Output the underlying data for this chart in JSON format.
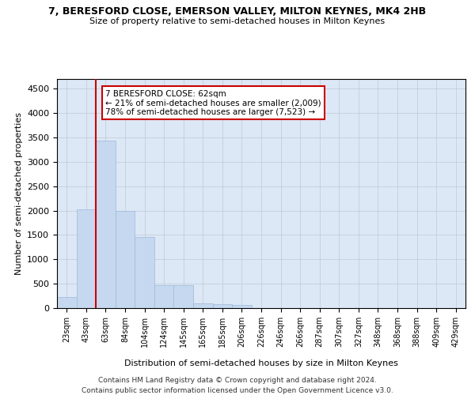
{
  "title": "7, BERESFORD CLOSE, EMERSON VALLEY, MILTON KEYNES, MK4 2HB",
  "subtitle": "Size of property relative to semi-detached houses in Milton Keynes",
  "xlabel": "Distribution of semi-detached houses by size in Milton Keynes",
  "ylabel": "Number of semi-detached properties",
  "footer_line1": "Contains HM Land Registry data © Crown copyright and database right 2024.",
  "footer_line2": "Contains public sector information licensed under the Open Government Licence v3.0.",
  "bar_labels": [
    "23sqm",
    "43sqm",
    "63sqm",
    "84sqm",
    "104sqm",
    "124sqm",
    "145sqm",
    "165sqm",
    "185sqm",
    "206sqm",
    "226sqm",
    "246sqm",
    "266sqm",
    "287sqm",
    "307sqm",
    "327sqm",
    "348sqm",
    "368sqm",
    "388sqm",
    "409sqm",
    "429sqm"
  ],
  "bar_values": [
    230,
    2020,
    3430,
    2000,
    1460,
    470,
    470,
    100,
    80,
    60,
    0,
    0,
    0,
    0,
    0,
    0,
    0,
    0,
    0,
    0,
    0
  ],
  "bar_color": "#c5d8f0",
  "bar_edgecolor": "#a0b8d8",
  "property_line_x": 1.5,
  "annotation_text_line1": "7 BERESFORD CLOSE: 62sqm",
  "annotation_text_line2": "← 21% of semi-detached houses are smaller (2,009)",
  "annotation_text_line3": "78% of semi-detached houses are larger (7,523) →",
  "ylim": [
    0,
    4700
  ],
  "yticks": [
    0,
    500,
    1000,
    1500,
    2000,
    2500,
    3000,
    3500,
    4000,
    4500
  ],
  "red_line_color": "#cc0000",
  "annotation_box_edgecolor": "#cc0000",
  "background_color": "#ffffff",
  "plot_bg_color": "#dce8f5",
  "grid_color": "#c0c8d8"
}
